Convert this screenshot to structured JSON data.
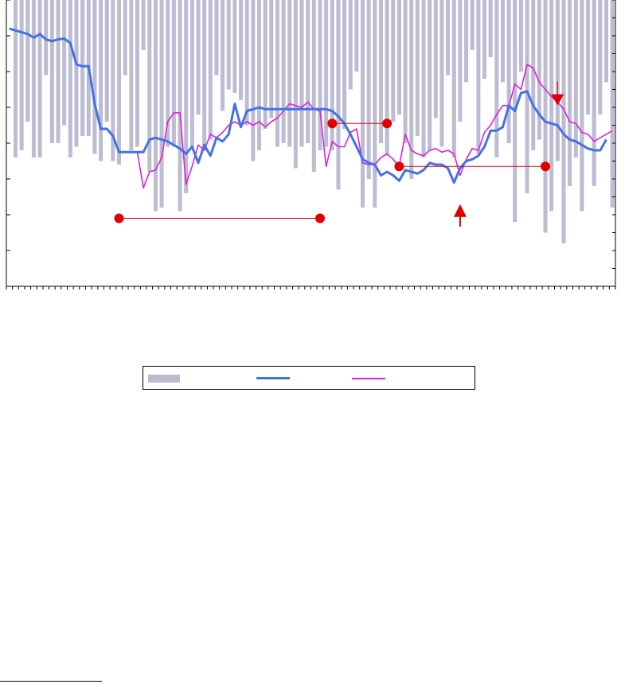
{
  "chart_data": {
    "type": "bar",
    "title": "",
    "xlabel": "",
    "ylabel": "",
    "left_ylim": [
      0,
      8
    ],
    "right_ylim": [
      0,
      8
    ],
    "grid": false,
    "legend_placement": "bottom",
    "n_periods": 100,
    "series": [
      {
        "name": "",
        "kind": "bar",
        "axis": "right",
        "color": "#bcbcd2",
        "values": [
          0,
          4.4,
          4.2,
          3.4,
          4.4,
          4.4,
          2.1,
          4.0,
          4.0,
          3.5,
          4.4,
          4.1,
          3.8,
          3.8,
          4.3,
          4.5,
          3.4,
          4.5,
          4.6,
          2.1,
          4.2,
          4.1,
          1.4,
          4.8,
          5.9,
          5.8,
          4.1,
          4.1,
          5.9,
          5.4,
          4.1,
          3.2,
          4.2,
          3.9,
          2.1,
          3.1,
          2.5,
          2.6,
          2.8,
          3.5,
          4.5,
          4.2,
          3.6,
          3.3,
          4.1,
          4.0,
          4.1,
          4.7,
          4.1,
          4.0,
          4.8,
          4.2,
          4.1,
          4.2,
          5.3,
          3.6,
          2.5,
          2.0,
          5.8,
          5.0,
          5.8,
          4.0,
          4.3,
          3.4,
          3.2,
          4.0,
          5.0,
          3.8,
          4.4,
          4.2,
          3.3,
          4.1,
          2.1,
          4.4,
          3.4,
          2.3,
          1.4,
          4.3,
          2.2,
          1.6,
          4.4,
          2.3,
          4.0,
          6.2,
          2.0,
          5.4,
          4.2,
          3.9,
          6.5,
          5.9,
          4.5,
          6.8,
          5.2,
          4.4,
          5.9,
          3.2,
          5.2,
          3.2,
          2.3,
          5.8
        ]
      },
      {
        "name": "",
        "kind": "line",
        "axis": "left",
        "color": "#4472e4",
        "values": [
          7.2,
          7.15,
          7.1,
          7.05,
          6.95,
          7.05,
          6.9,
          6.85,
          6.9,
          6.92,
          6.8,
          6.2,
          6.15,
          6.15,
          5.1,
          4.4,
          4.4,
          4.2,
          3.75,
          3.75,
          3.75,
          3.75,
          3.75,
          4.1,
          4.15,
          4.1,
          4.05,
          3.95,
          3.85,
          3.7,
          3.9,
          3.45,
          3.95,
          3.65,
          4.15,
          4.05,
          4.25,
          5.1,
          4.45,
          4.9,
          4.95,
          5.0,
          4.95,
          4.95,
          4.95,
          4.95,
          4.95,
          4.95,
          4.95,
          4.95,
          4.95,
          4.95,
          4.95,
          4.9,
          4.75,
          4.55,
          4.25,
          3.9,
          3.55,
          3.45,
          3.4,
          3.1,
          3.2,
          3.1,
          2.95,
          3.25,
          3.2,
          3.15,
          3.25,
          3.45,
          3.4,
          3.4,
          3.3,
          2.9,
          3.3,
          3.5,
          3.55,
          3.65,
          3.9,
          4.35,
          4.35,
          4.45,
          5.05,
          4.9,
          5.4,
          5.45,
          5.05,
          4.8,
          4.6,
          4.55,
          4.5,
          4.25,
          4.1,
          4.05,
          3.95,
          3.85,
          3.8,
          3.8,
          4.1
        ]
      },
      {
        "name": "",
        "kind": "line",
        "axis": "left",
        "color": "#e020e0",
        "values": [
          7.2,
          7.15,
          7.1,
          7.05,
          6.95,
          7.05,
          6.9,
          6.85,
          6.9,
          6.92,
          6.8,
          6.2,
          6.15,
          6.15,
          5.1,
          4.4,
          4.4,
          4.2,
          3.75,
          3.75,
          3.75,
          3.75,
          2.75,
          3.2,
          3.25,
          3.6,
          4.6,
          4.85,
          4.85,
          2.85,
          3.35,
          3.95,
          3.8,
          4.25,
          4.15,
          4.3,
          4.5,
          4.6,
          4.5,
          4.6,
          4.5,
          4.6,
          4.45,
          4.6,
          4.7,
          4.9,
          5.1,
          5.05,
          5.0,
          5.15,
          4.95,
          4.9,
          3.35,
          4.05,
          3.9,
          3.9,
          4.3,
          4.4,
          3.45,
          3.4,
          3.4,
          3.6,
          3.7,
          3.55,
          3.35,
          4.25,
          3.8,
          3.7,
          3.65,
          3.8,
          3.85,
          3.75,
          3.8,
          3.7,
          3.1,
          3.55,
          3.85,
          3.8,
          4.3,
          4.5,
          4.8,
          5.05,
          5.05,
          5.65,
          5.5,
          6.2,
          6.1,
          5.7,
          5.5,
          5.3,
          5.15,
          4.95,
          4.6,
          4.55,
          4.3,
          4.25,
          4.05,
          4.15,
          4.25,
          4.35
        ]
      }
    ],
    "annotations": [
      {
        "kind": "range",
        "color": "#e00000",
        "x_start": 18,
        "x_end": 51,
        "y": 1.9
      },
      {
        "kind": "range",
        "color": "#e00000",
        "x_start": 53,
        "x_end": 62,
        "y": 4.55
      },
      {
        "kind": "range",
        "color": "#e00000",
        "x_start": 64,
        "x_end": 88,
        "y": 3.35
      },
      {
        "kind": "arrow-up",
        "color": "#e00000",
        "x": 74,
        "y": 2.25
      },
      {
        "kind": "arrow-down",
        "color": "#e00000",
        "x": 90,
        "y": 5.1
      }
    ]
  },
  "legend": {
    "items": [
      {
        "label": ""
      },
      {
        "label": ""
      },
      {
        "label": ""
      }
    ]
  }
}
